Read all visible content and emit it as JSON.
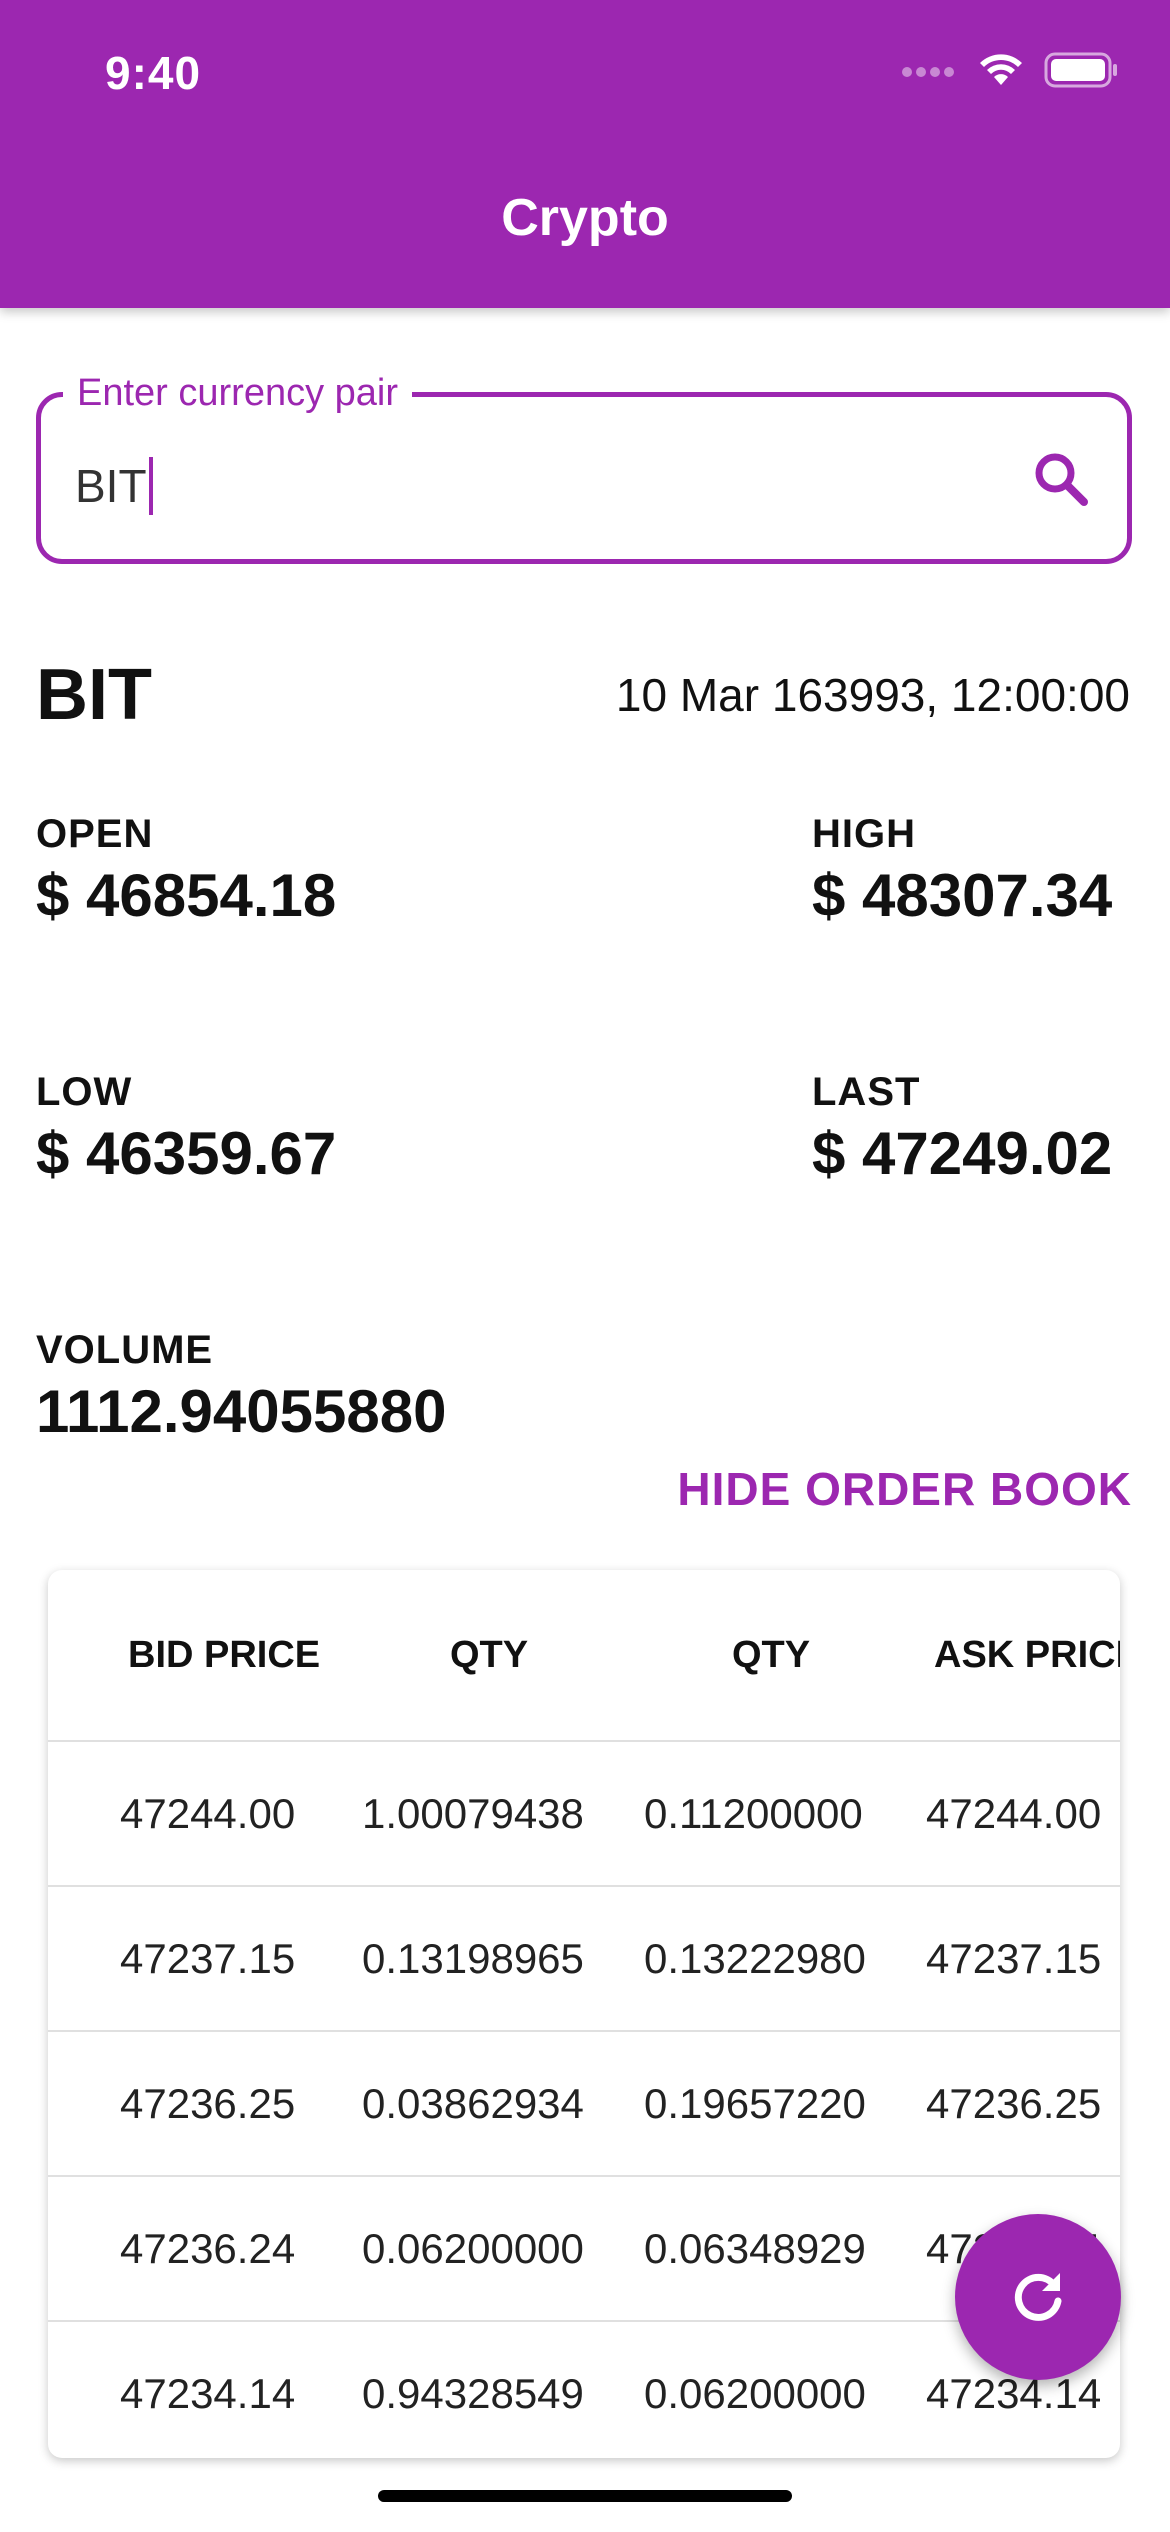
{
  "status_bar": {
    "time": "9:40"
  },
  "app_bar": {
    "title": "Crypto"
  },
  "search": {
    "label": "Enter currency pair",
    "value": "BIT"
  },
  "pair": {
    "symbol": "BIT",
    "datetime": "10 Mar 163993, 12:00:00"
  },
  "stats": {
    "open": {
      "label": "OPEN",
      "value": "$ 46854.18"
    },
    "high": {
      "label": "HIGH",
      "value": "$ 48307.34"
    },
    "low": {
      "label": "LOW",
      "value": "$ 46359.67"
    },
    "last": {
      "label": "LAST",
      "value": "$ 47249.02"
    },
    "volume": {
      "label": "VOLUME",
      "value": "1112.94055880"
    }
  },
  "order_book_toggle": "HIDE ORDER BOOK",
  "order_book": {
    "headers": [
      "BID PRICE",
      "QTY",
      "QTY",
      "ASK PRICE"
    ],
    "rows": [
      [
        "47244.00",
        "1.00079438",
        "0.11200000",
        "47244.00"
      ],
      [
        "47237.15",
        "0.13198965",
        "0.13222980",
        "47237.15"
      ],
      [
        "47236.25",
        "0.03862934",
        "0.19657220",
        "47236.25"
      ],
      [
        "47236.24",
        "0.06200000",
        "0.06348929",
        "47236.24"
      ],
      [
        "47234.14",
        "0.94328549",
        "0.06200000",
        "47234.14"
      ]
    ]
  },
  "colors": {
    "primary": "#9c27b0"
  },
  "icons": {
    "search": "search-icon",
    "refresh": "refresh-icon"
  }
}
